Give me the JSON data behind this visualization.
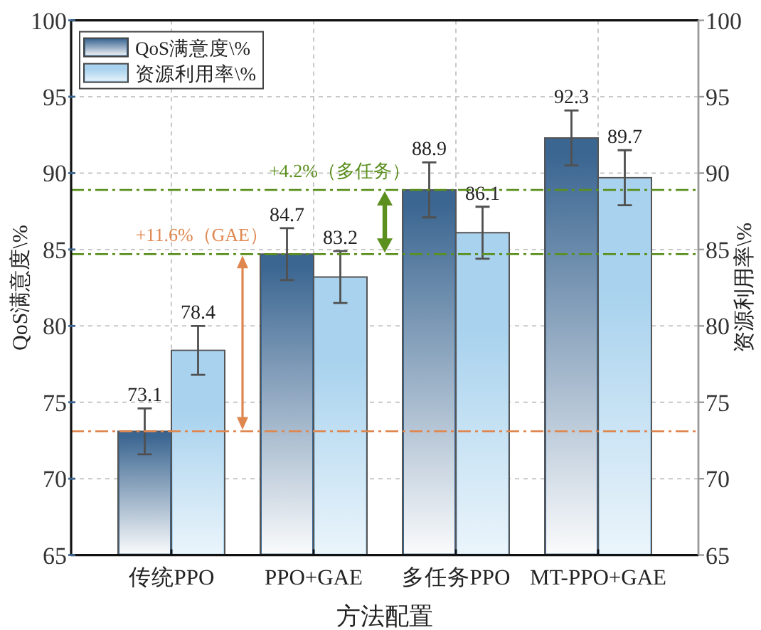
{
  "chart_data": {
    "type": "bar",
    "xlabel": "方法配置",
    "ylabel": "QoS满意度\\%",
    "y2label": "资源利用率\\%",
    "categories": [
      "传统PPO",
      "PPO+GAE",
      "多任务PPO",
      "MT-PPO+GAE"
    ],
    "series": [
      {
        "name": "QoS满意度\\%",
        "color": "#3b6691",
        "values": [
          73.1,
          84.7,
          88.9,
          92.3
        ],
        "errors": [
          1.5,
          1.7,
          1.8,
          1.8
        ]
      },
      {
        "name": "资源利用率\\%",
        "color": "#a8d2ee",
        "values": [
          78.4,
          83.2,
          86.1,
          89.7
        ],
        "errors": [
          1.6,
          1.7,
          1.7,
          1.8
        ],
        "axis": "y2"
      }
    ],
    "ylim": [
      65,
      100
    ],
    "yticks": [
      65,
      70,
      75,
      80,
      85,
      90,
      95,
      100
    ],
    "y2lim": [
      65,
      100
    ],
    "y2ticks": [
      65,
      70,
      75,
      80,
      85,
      90,
      95,
      100
    ],
    "ref_lines": [
      {
        "axis": "y",
        "value": 73.1,
        "color": "#e0874f",
        "line_style": "dashdot"
      },
      {
        "axis": "y",
        "value": 84.7,
        "color": "#5b8f1e",
        "line_style": "dashdot"
      },
      {
        "axis": "y",
        "value": 88.9,
        "color": "#5b8f1e",
        "line_style": "dashdot"
      }
    ],
    "annotations": [
      {
        "text": "+11.6%（GAE）",
        "y": 84.7
      },
      {
        "text": "+4.2%（多任务）",
        "y": 88.9
      }
    ],
    "data_labels": true,
    "grid": true,
    "legend": "top left"
  }
}
